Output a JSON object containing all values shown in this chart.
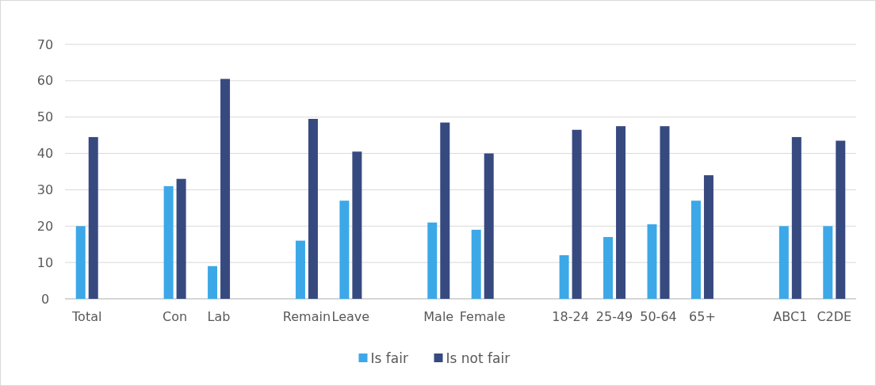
{
  "chart_data": {
    "type": "bar",
    "categories": [
      "Total",
      null,
      "Con",
      "Lab",
      null,
      "Remain",
      "Leave",
      null,
      "Male",
      "Female",
      null,
      "18-24",
      "25-49",
      "50-64",
      "65+",
      null,
      "ABC1",
      "C2DE"
    ],
    "series": [
      {
        "name": "Is fair",
        "color": "#3ca8e8",
        "values": [
          20,
          null,
          31,
          9,
          null,
          16,
          27,
          null,
          21,
          19,
          null,
          12,
          17,
          20.5,
          27,
          null,
          20,
          20
        ]
      },
      {
        "name": "Is not fair",
        "color": "#374a80",
        "values": [
          44.5,
          null,
          33,
          60.5,
          null,
          49.5,
          40.5,
          null,
          48.5,
          40,
          null,
          46.5,
          47.5,
          47.5,
          34,
          null,
          44.5,
          43.5
        ]
      }
    ],
    "ylim": [
      0,
      70
    ],
    "yticks": [
      0,
      10,
      20,
      30,
      40,
      50,
      60,
      70
    ],
    "grid": "y",
    "legend": "bottom"
  }
}
